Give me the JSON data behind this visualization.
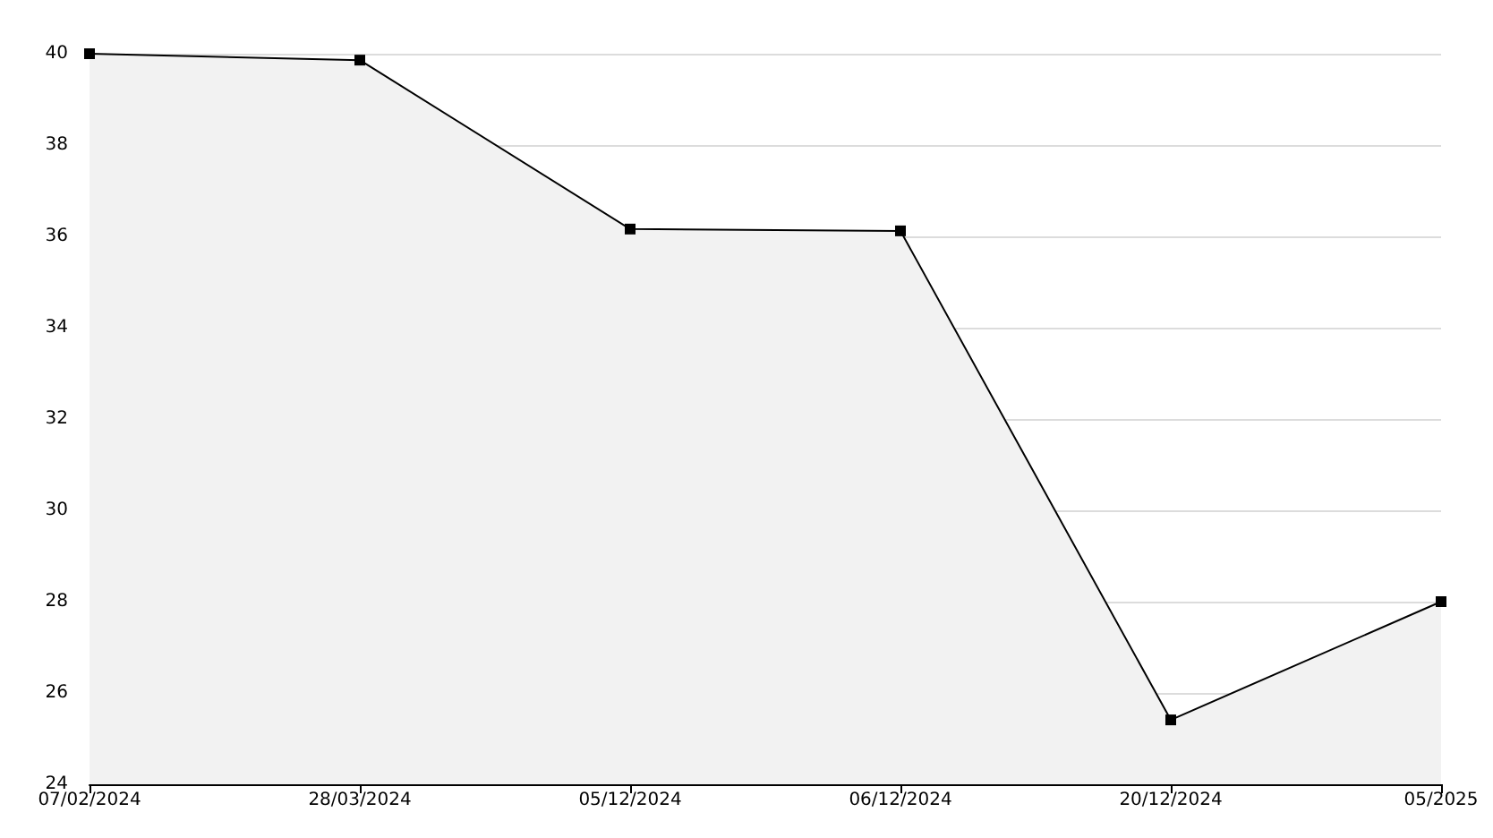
{
  "chart_data": {
    "type": "area",
    "categories": [
      "07/02/2024",
      "28/03/2024",
      "05/12/2024",
      "06/12/2024",
      "20/12/2024",
      "05/2025"
    ],
    "series": [
      {
        "color": "#000000",
        "values": [
          40,
          39.86,
          36.16,
          36.12,
          25.41,
          28.0
        ]
      }
    ],
    "ylim": [
      24,
      40
    ],
    "yticks": [
      24,
      26,
      28,
      30,
      32,
      34,
      36,
      38,
      40
    ],
    "grid": "y",
    "marker": "square",
    "line_style": "solid"
  }
}
